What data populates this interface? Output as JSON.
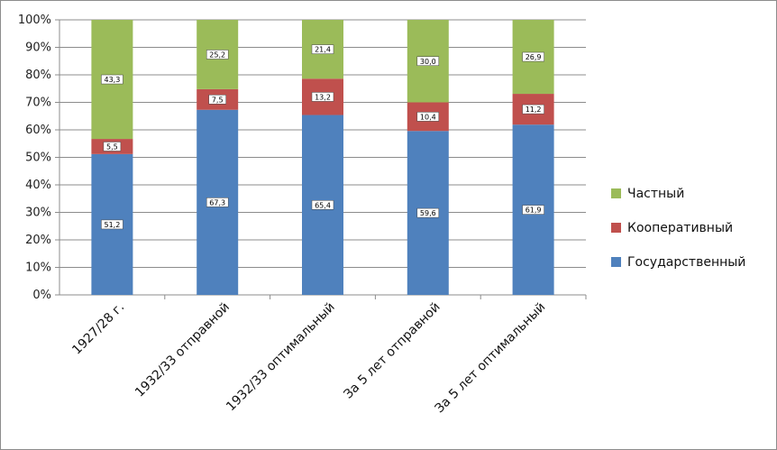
{
  "chart_data": {
    "type": "bar",
    "stacked": true,
    "percent": true,
    "categories": [
      "1927/28 г.",
      "1932/33 отправной",
      "1932/33 оптимальный",
      "За 5 лет отправной",
      "За 5 лет оптимальный"
    ],
    "series": [
      {
        "name": "Государственный",
        "values": [
          51.2,
          67.3,
          65.4,
          59.6,
          61.9
        ],
        "labels": [
          "51,2",
          "67,3",
          "65,4",
          "59,6",
          "61,9"
        ],
        "color": "#4f81bd"
      },
      {
        "name": "Кооперативный",
        "values": [
          5.5,
          7.5,
          13.2,
          10.4,
          11.2
        ],
        "labels": [
          "5,5",
          "7,5",
          "13,2",
          "10,4",
          "11,2"
        ],
        "color": "#c0504d"
      },
      {
        "name": "Частный",
        "values": [
          43.3,
          25.2,
          21.4,
          30.0,
          26.9
        ],
        "labels": [
          "43,3",
          "25,2",
          "21,4",
          "30,0",
          "26,9"
        ],
        "color": "#9bbb59"
      }
    ],
    "yticks": [
      "0%",
      "10%",
      "20%",
      "30%",
      "40%",
      "50%",
      "60%",
      "70%",
      "80%",
      "90%",
      "100%"
    ],
    "ylim": [
      0,
      100
    ],
    "grid": true,
    "legend_position": "right",
    "legend_order": [
      "Частный",
      "Кооперативный",
      "Государственный"
    ],
    "gridline_color": "#8c8c8c"
  }
}
